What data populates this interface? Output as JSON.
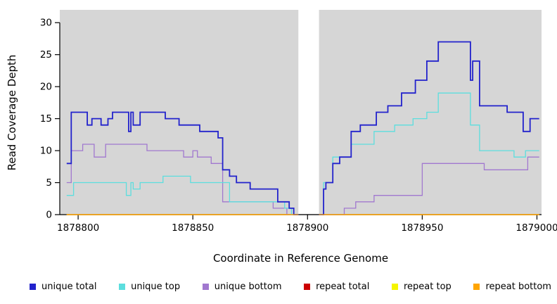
{
  "chart_data": {
    "type": "line",
    "subtype": "step",
    "title": "",
    "xlabel": "Coordinate in Reference Genome",
    "ylabel": "Read Coverage Depth",
    "xlim": [
      1878792,
      1879002
    ],
    "ylim": [
      0,
      32
    ],
    "x_ticks": [
      1878800,
      1878850,
      1878900,
      1878950,
      1879000
    ],
    "y_ticks": [
      0,
      5,
      10,
      15,
      20,
      25,
      30
    ],
    "plot_background": "#d6d6d6",
    "gap_region": [
      1878896,
      1878905
    ],
    "grid": false,
    "legend_position": "bottom",
    "series": [
      {
        "name": "unique total",
        "color": "#2222CC",
        "width": 1.8,
        "segments": [
          [
            [
              1878795,
              8
            ],
            [
              1878797,
              16
            ],
            [
              1878804,
              14
            ],
            [
              1878806,
              15
            ],
            [
              1878810,
              14
            ],
            [
              1878813,
              15
            ],
            [
              1878815,
              16
            ],
            [
              1878822,
              13
            ],
            [
              1878823,
              16
            ],
            [
              1878824,
              14
            ],
            [
              1878827,
              16
            ],
            [
              1878838,
              15
            ],
            [
              1878844,
              14
            ],
            [
              1878853,
              13
            ],
            [
              1878861,
              12
            ],
            [
              1878863,
              7
            ],
            [
              1878866,
              6
            ],
            [
              1878869,
              5
            ],
            [
              1878875,
              4
            ],
            [
              1878887,
              2
            ],
            [
              1878892,
              1
            ],
            [
              1878894,
              0
            ],
            [
              1878896,
              0
            ]
          ],
          [
            [
              1878905,
              0
            ],
            [
              1878907,
              4
            ],
            [
              1878908,
              5
            ],
            [
              1878911,
              8
            ],
            [
              1878914,
              9
            ],
            [
              1878919,
              13
            ],
            [
              1878923,
              14
            ],
            [
              1878930,
              16
            ],
            [
              1878935,
              17
            ],
            [
              1878941,
              19
            ],
            [
              1878947,
              21
            ],
            [
              1878952,
              24
            ],
            [
              1878957,
              27
            ],
            [
              1878971,
              21
            ],
            [
              1878972,
              24
            ],
            [
              1878975,
              17
            ],
            [
              1878987,
              16
            ],
            [
              1878994,
              13
            ],
            [
              1878997,
              15
            ],
            [
              1879001,
              15
            ]
          ]
        ]
      },
      {
        "name": "unique top",
        "color": "#5CDEDE",
        "width": 1.3,
        "segments": [
          [
            [
              1878795,
              3
            ],
            [
              1878798,
              5
            ],
            [
              1878821,
              3
            ],
            [
              1878823,
              5
            ],
            [
              1878824,
              4
            ],
            [
              1878827,
              5
            ],
            [
              1878837,
              6
            ],
            [
              1878849,
              5
            ],
            [
              1878866,
              2
            ],
            [
              1878890,
              1
            ],
            [
              1878893,
              0
            ],
            [
              1878896,
              0
            ]
          ],
          [
            [
              1878905,
              0
            ],
            [
              1878907,
              5
            ],
            [
              1878911,
              9
            ],
            [
              1878919,
              11
            ],
            [
              1878929,
              13
            ],
            [
              1878938,
              14
            ],
            [
              1878946,
              15
            ],
            [
              1878952,
              16
            ],
            [
              1878957,
              19
            ],
            [
              1878971,
              14
            ],
            [
              1878975,
              10
            ],
            [
              1878990,
              9
            ],
            [
              1878995,
              10
            ],
            [
              1879001,
              10
            ]
          ]
        ]
      },
      {
        "name": "unique bottom",
        "color": "#A178CF",
        "width": 1.3,
        "segments": [
          [
            [
              1878795,
              5
            ],
            [
              1878797,
              10
            ],
            [
              1878802,
              11
            ],
            [
              1878807,
              9
            ],
            [
              1878812,
              11
            ],
            [
              1878830,
              10
            ],
            [
              1878846,
              9
            ],
            [
              1878850,
              10
            ],
            [
              1878852,
              9
            ],
            [
              1878858,
              8
            ],
            [
              1878863,
              2
            ],
            [
              1878885,
              1
            ],
            [
              1878891,
              0
            ],
            [
              1878896,
              0
            ]
          ],
          [
            [
              1878905,
              0
            ],
            [
              1878916,
              1
            ],
            [
              1878921,
              2
            ],
            [
              1878929,
              3
            ],
            [
              1878950,
              8
            ],
            [
              1878977,
              7
            ],
            [
              1878996,
              9
            ],
            [
              1879001,
              9
            ]
          ]
        ]
      },
      {
        "name": "repeat total",
        "color": "#CC0000",
        "width": 1.3,
        "segments": [
          [
            [
              1878795,
              0
            ],
            [
              1878896,
              0
            ]
          ],
          [
            [
              1878905,
              0
            ],
            [
              1879001,
              0
            ]
          ]
        ]
      },
      {
        "name": "repeat top",
        "color": "#F5F500",
        "width": 1.3,
        "segments": [
          [
            [
              1878795,
              0
            ],
            [
              1878896,
              0
            ]
          ],
          [
            [
              1878905,
              0
            ],
            [
              1879001,
              0
            ]
          ]
        ]
      },
      {
        "name": "repeat bottom",
        "color": "#FFA500",
        "width": 1.3,
        "segments": [
          [
            [
              1878795,
              0
            ],
            [
              1878896,
              0
            ]
          ],
          [
            [
              1878905,
              0
            ],
            [
              1879001,
              0
            ]
          ]
        ]
      }
    ],
    "legend": [
      {
        "label": "unique total",
        "color": "#2222CC"
      },
      {
        "label": "unique top",
        "color": "#5CDEDE"
      },
      {
        "label": "unique bottom",
        "color": "#A178CF"
      },
      {
        "label": "repeat total",
        "color": "#CC0000"
      },
      {
        "label": "repeat top",
        "color": "#F5F500"
      },
      {
        "label": "repeat bottom",
        "color": "#FFA500"
      }
    ]
  }
}
